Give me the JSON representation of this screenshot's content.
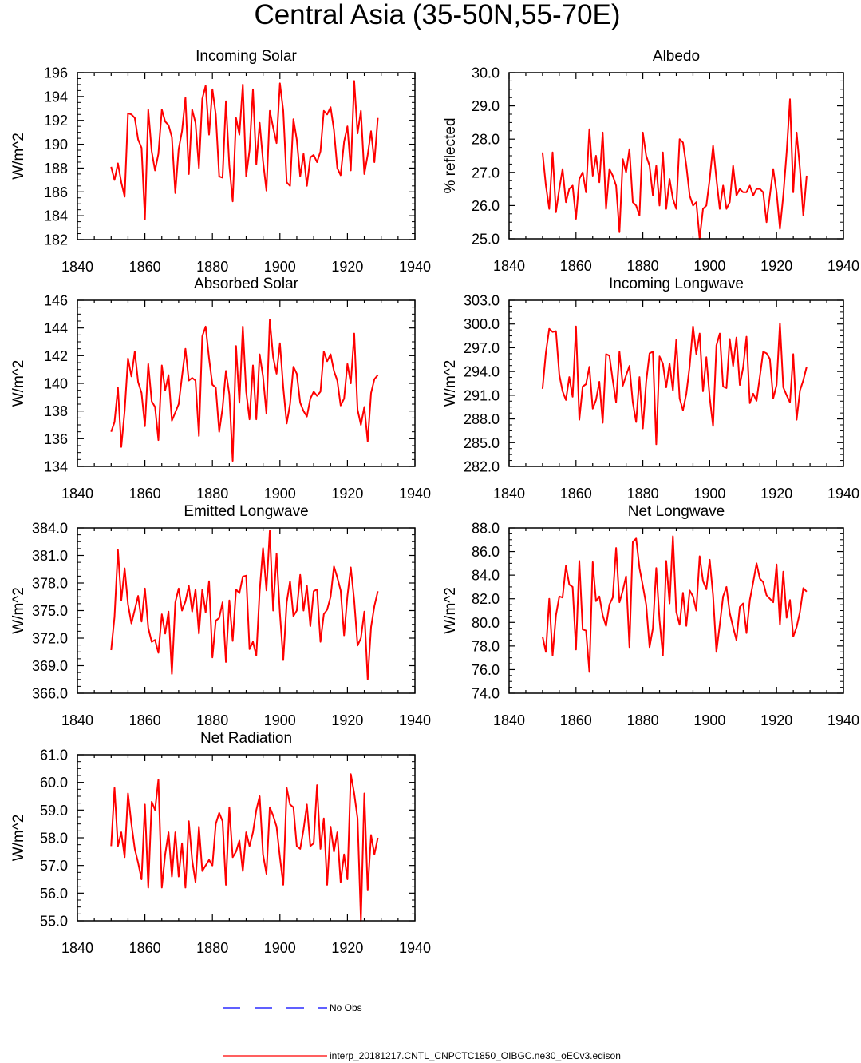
{
  "page": {
    "title": "Central Asia (35-50N,55-70E)"
  },
  "colors": {
    "series": "#ff0000",
    "no_obs": "#0000ff",
    "axis": "#000000"
  },
  "legend": {
    "no_obs_label": "No Obs",
    "model_label": "interp_20181217.CNTL_CNPCTC1850_OIBGC.ne30_oECv3.edison"
  },
  "chart_data": [
    {
      "type": "line",
      "title": "Incoming Solar",
      "ylabel": "W/m^2",
      "xlim": [
        1840,
        1940
      ],
      "ylim": [
        182,
        196
      ],
      "xticks": [
        1840,
        1860,
        1880,
        1900,
        1920,
        1940
      ],
      "yticks": [
        "182",
        "184",
        "186",
        "188",
        "190",
        "192",
        "194",
        "196"
      ],
      "x_start": 1850,
      "values": [
        188.1,
        187.0,
        188.4,
        186.8,
        185.6,
        192.6,
        192.5,
        192.2,
        190.4,
        189.7,
        183.7,
        192.9,
        189.4,
        187.8,
        189.2,
        192.9,
        191.9,
        191.6,
        190.6,
        185.9,
        189.6,
        191.1,
        193.9,
        187.5,
        192.9,
        191.8,
        188.0,
        193.8,
        194.9,
        190.8,
        194.6,
        192.5,
        187.3,
        187.2,
        193.6,
        188.2,
        185.2,
        192.2,
        190.8,
        195.0,
        187.3,
        189.5,
        194.6,
        188.3,
        191.8,
        188.6,
        186.1,
        192.8,
        191.4,
        190.1,
        195.1,
        192.8,
        186.8,
        186.5,
        192.1,
        190.4,
        187.3,
        189.2,
        186.5,
        188.9,
        189.1,
        188.5,
        189.4,
        192.8,
        192.5,
        193.1,
        191.2,
        188.0,
        187.4,
        190.2,
        191.5,
        187.8,
        195.3,
        190.9,
        192.8,
        187.5,
        189.1,
        191.1,
        188.5,
        192.2
      ]
    },
    {
      "type": "line",
      "title": "Albedo",
      "ylabel": "% reflected",
      "xlim": [
        1840,
        1940
      ],
      "ylim": [
        25.0,
        30.0
      ],
      "xticks": [
        1840,
        1860,
        1880,
        1900,
        1920,
        1940
      ],
      "yticks": [
        "25.0",
        "26.0",
        "27.0",
        "28.0",
        "29.0",
        "30.0"
      ],
      "x_start": 1850,
      "values": [
        27.6,
        26.6,
        25.9,
        27.6,
        25.8,
        26.5,
        27.1,
        26.1,
        26.5,
        26.6,
        25.6,
        26.8,
        27.0,
        26.4,
        28.3,
        26.9,
        27.5,
        26.7,
        28.2,
        25.9,
        27.1,
        26.9,
        26.6,
        25.2,
        27.4,
        27.0,
        27.7,
        26.1,
        26.0,
        25.7,
        28.2,
        27.5,
        27.2,
        26.3,
        27.2,
        26.0,
        27.6,
        25.9,
        26.8,
        26.2,
        25.9,
        28.0,
        27.9,
        27.2,
        26.3,
        26.0,
        26.1,
        25.0,
        25.9,
        26.0,
        26.8,
        27.8,
        26.8,
        25.9,
        26.6,
        25.9,
        26.1,
        27.2,
        26.3,
        26.5,
        26.4,
        26.4,
        26.6,
        26.3,
        26.5,
        26.5,
        26.4,
        25.5,
        26.3,
        27.1,
        26.4,
        25.3,
        26.3,
        27.6,
        29.2,
        26.4,
        28.2,
        27.1,
        25.7,
        26.9
      ]
    },
    {
      "type": "line",
      "title": "Absorbed Solar",
      "ylabel": "W/m^2",
      "xlim": [
        1840,
        1940
      ],
      "ylim": [
        134,
        146
      ],
      "xticks": [
        1840,
        1860,
        1880,
        1900,
        1920,
        1940
      ],
      "yticks": [
        "134",
        "136",
        "138",
        "140",
        "142",
        "144",
        "146"
      ],
      "x_start": 1850,
      "values": [
        136.5,
        137.2,
        139.7,
        135.4,
        138.0,
        141.8,
        140.5,
        142.3,
        140.1,
        139.3,
        136.9,
        141.4,
        138.7,
        138.3,
        135.9,
        141.3,
        139.5,
        140.6,
        137.3,
        137.9,
        138.5,
        140.5,
        142.5,
        140.2,
        140.4,
        140.2,
        136.2,
        143.4,
        144.1,
        141.8,
        139.9,
        139.7,
        136.5,
        138.2,
        140.9,
        139.2,
        134.4,
        142.7,
        138.6,
        144.1,
        139.4,
        137.4,
        141.3,
        137.4,
        142.1,
        140.5,
        137.8,
        144.6,
        141.9,
        140.7,
        142.9,
        139.7,
        137.1,
        138.5,
        141.2,
        140.7,
        138.6,
        138.0,
        137.6,
        138.9,
        139.4,
        139.1,
        139.4,
        142.3,
        141.6,
        142.1,
        140.9,
        140.2,
        138.4,
        138.9,
        141.4,
        140.0,
        143.6,
        138.1,
        137.0,
        138.3,
        135.8,
        139.3,
        140.3,
        140.6
      ]
    },
    {
      "type": "line",
      "title": "Incoming Longwave",
      "ylabel": "W/m^2",
      "xlim": [
        1840,
        1940
      ],
      "ylim": [
        282.0,
        303.0
      ],
      "xticks": [
        1840,
        1860,
        1880,
        1900,
        1920,
        1940
      ],
      "yticks": [
        "282.0",
        "285.0",
        "288.0",
        "291.0",
        "294.0",
        "297.0",
        "300.0",
        "303.0"
      ],
      "x_start": 1850,
      "values": [
        291.8,
        296.4,
        299.4,
        299.0,
        299.1,
        293.6,
        291.5,
        290.4,
        293.3,
        290.8,
        299.7,
        287.9,
        292.1,
        292.4,
        294.6,
        289.3,
        290.4,
        292.7,
        287.5,
        296.2,
        296.0,
        292.9,
        290.1,
        296.5,
        292.2,
        293.5,
        294.7,
        290.1,
        287.6,
        293.3,
        286.8,
        292.7,
        296.3,
        296.5,
        284.8,
        295.9,
        295.0,
        292.0,
        295.0,
        291.6,
        298.0,
        290.6,
        289.1,
        291.2,
        294.7,
        299.7,
        296.2,
        298.8,
        291.5,
        295.8,
        290.7,
        287.1,
        297.3,
        298.8,
        292.1,
        291.9,
        298.1,
        294.7,
        298.3,
        292.3,
        294.5,
        298.4,
        290.0,
        291.2,
        290.3,
        293.4,
        296.5,
        296.3,
        295.6,
        290.6,
        292.3,
        300.1,
        292.0,
        291.0,
        290.1,
        296.2,
        287.9,
        291.6,
        292.9,
        294.6
      ]
    },
    {
      "type": "line",
      "title": "Emitted Longwave",
      "ylabel": "W/m^2",
      "xlim": [
        1840,
        1940
      ],
      "ylim": [
        366.0,
        384.0
      ],
      "xticks": [
        1840,
        1860,
        1880,
        1900,
        1920,
        1940
      ],
      "yticks": [
        "366.0",
        "369.0",
        "372.0",
        "375.0",
        "378.0",
        "381.0",
        "384.0"
      ],
      "x_start": 1850,
      "values": [
        370.7,
        374.3,
        381.6,
        376.1,
        379.6,
        375.7,
        373.6,
        375.1,
        376.6,
        373.8,
        377.4,
        373.1,
        371.6,
        371.8,
        370.4,
        374.6,
        372.5,
        374.9,
        368.1,
        375.9,
        377.4,
        375.0,
        376.0,
        377.7,
        374.9,
        377.3,
        372.5,
        377.3,
        374.8,
        378.2,
        369.9,
        373.9,
        374.2,
        375.9,
        369.4,
        376.1,
        371.7,
        377.3,
        376.9,
        378.7,
        378.8,
        370.8,
        371.6,
        370.1,
        377.1,
        381.8,
        377.2,
        383.7,
        375.0,
        381.2,
        374.7,
        369.6,
        375.9,
        378.2,
        374.4,
        375.0,
        378.9,
        375.0,
        377.7,
        373.3,
        377.1,
        377.3,
        371.6,
        374.6,
        375.1,
        376.5,
        379.8,
        378.6,
        377.2,
        372.3,
        376.6,
        379.7,
        376.1,
        371.2,
        372.0,
        374.9,
        367.5,
        373.2,
        375.5,
        377.1
      ]
    },
    {
      "type": "line",
      "title": "Net Longwave",
      "ylabel": "W/m^2",
      "xlim": [
        1840,
        1940
      ],
      "ylim": [
        74.0,
        88.0
      ],
      "xticks": [
        1840,
        1860,
        1880,
        1900,
        1920,
        1940
      ],
      "yticks": [
        "74.0",
        "76.0",
        "78.0",
        "80.0",
        "82.0",
        "84.0",
        "86.0",
        "88.0"
      ],
      "x_start": 1850,
      "values": [
        78.8,
        77.5,
        82.0,
        77.2,
        80.6,
        82.2,
        82.1,
        84.8,
        83.2,
        83.0,
        77.7,
        85.2,
        79.4,
        79.3,
        75.8,
        85.1,
        81.8,
        82.2,
        80.6,
        79.7,
        81.5,
        82.1,
        86.3,
        81.7,
        82.7,
        83.9,
        77.9,
        86.8,
        87.1,
        84.6,
        83.1,
        81.5,
        77.9,
        79.5,
        84.6,
        80.2,
        77.2,
        85.2,
        81.6,
        87.3,
        80.9,
        79.8,
        82.5,
        79.7,
        82.7,
        82.2,
        81.0,
        85.6,
        83.5,
        82.8,
        85.3,
        82.3,
        77.5,
        79.8,
        82.2,
        83.0,
        80.8,
        79.6,
        78.5,
        81.3,
        81.6,
        79.1,
        81.9,
        83.4,
        85.0,
        83.7,
        83.4,
        82.3,
        82.0,
        81.7,
        84.9,
        79.8,
        84.3,
        80.4,
        81.9,
        78.8,
        79.6,
        80.9,
        82.9,
        82.6
      ]
    },
    {
      "type": "line",
      "title": "Net Radiation",
      "ylabel": "W/m^2",
      "xlim": [
        1840,
        1940
      ],
      "ylim": [
        55.0,
        61.0
      ],
      "xticks": [
        1840,
        1860,
        1880,
        1900,
        1920,
        1940
      ],
      "yticks": [
        "55.0",
        "56.0",
        "57.0",
        "58.0",
        "59.0",
        "60.0",
        "61.0"
      ],
      "x_start": 1850,
      "values": [
        57.7,
        59.8,
        57.7,
        58.2,
        57.3,
        59.6,
        58.5,
        57.6,
        57.1,
        56.5,
        59.2,
        56.2,
        59.3,
        59.0,
        60.1,
        56.2,
        57.4,
        58.2,
        56.6,
        58.2,
        56.6,
        57.8,
        56.2,
        58.6,
        57.2,
        56.4,
        58.4,
        56.8,
        57.0,
        57.2,
        57.0,
        58.5,
        58.9,
        58.6,
        56.3,
        59.1,
        57.3,
        57.5,
        57.9,
        56.8,
        58.2,
        57.7,
        58.2,
        59.0,
        59.5,
        57.4,
        56.7,
        59.1,
        58.8,
        58.4,
        57.3,
        56.3,
        59.8,
        59.2,
        59.1,
        57.7,
        57.6,
        58.3,
        59.2,
        57.7,
        57.8,
        59.9,
        57.6,
        58.7,
        56.3,
        58.4,
        57.5,
        58.2,
        56.4,
        57.4,
        56.5,
        60.3,
        59.6,
        58.7,
        55.0,
        59.6,
        56.1,
        58.1,
        57.4,
        58.0
      ]
    }
  ]
}
